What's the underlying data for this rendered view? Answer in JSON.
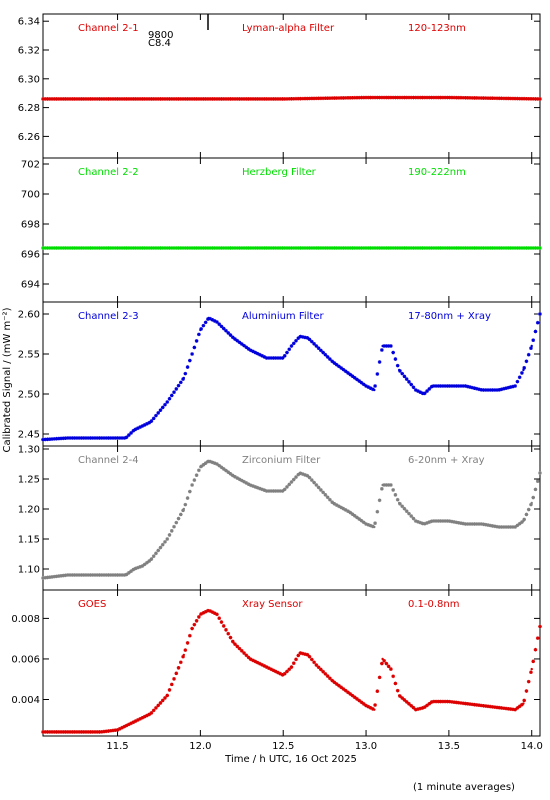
{
  "xlabel": "Time / h UTC, 16 Oct 2025",
  "ylabel": "Calibrated Signal / (mW m⁻²)",
  "footnote": "(1 minute averages)",
  "stray_labels": [
    "9800",
    "C8.4"
  ],
  "chart_data": [
    {
      "type": "scatter",
      "labels": [
        "Channel 2-1",
        "Lyman-alpha Filter",
        "120-123nm"
      ],
      "color": "#dd0000",
      "xlim": [
        11.05,
        14.05
      ],
      "ylim": [
        6.245,
        6.345
      ],
      "yticks": [
        "6.26",
        "6.28",
        "6.30",
        "6.32",
        "6.34"
      ],
      "ytick_values": [
        6.26,
        6.28,
        6.3,
        6.32,
        6.34
      ],
      "x": [
        11.05,
        11.5,
        12.0,
        12.5,
        13.0,
        13.5,
        14.05
      ],
      "y": [
        6.286,
        6.286,
        6.286,
        6.286,
        6.287,
        6.287,
        6.286
      ]
    },
    {
      "type": "scatter",
      "labels": [
        "Channel 2-2",
        "Herzberg Filter",
        "190-222nm"
      ],
      "color": "#00dd00",
      "xlim": [
        11.05,
        14.05
      ],
      "ylim": [
        692.8,
        702.4
      ],
      "yticks": [
        "694",
        "696",
        "698",
        "700",
        "702"
      ],
      "ytick_values": [
        694,
        696,
        698,
        700,
        702
      ],
      "x": [
        11.05,
        11.5,
        12.0,
        12.5,
        13.0,
        13.5,
        14.05
      ],
      "y": [
        696.4,
        696.4,
        696.4,
        696.4,
        696.4,
        696.4,
        696.4
      ]
    },
    {
      "type": "scatter",
      "labels": [
        "Channel 2-3",
        "Aluminium Filter",
        "17-80nm + Xray"
      ],
      "color": "#0000dd",
      "xlim": [
        11.05,
        14.05
      ],
      "ylim": [
        2.435,
        2.615
      ],
      "yticks": [
        "2.45",
        "2.50",
        "2.55",
        "2.60"
      ],
      "ytick_values": [
        2.45,
        2.5,
        2.55,
        2.6
      ],
      "x": [
        11.05,
        11.2,
        11.3,
        11.4,
        11.55,
        11.6,
        11.65,
        11.7,
        11.8,
        11.9,
        11.95,
        12.0,
        12.05,
        12.1,
        12.2,
        12.3,
        12.4,
        12.5,
        12.55,
        12.6,
        12.65,
        12.7,
        12.8,
        12.9,
        13.0,
        13.05,
        13.1,
        13.15,
        13.2,
        13.3,
        13.35,
        13.4,
        13.5,
        13.6,
        13.7,
        13.8,
        13.9,
        13.95,
        14.0,
        14.05
      ],
      "y": [
        2.443,
        2.445,
        2.445,
        2.445,
        2.445,
        2.455,
        2.46,
        2.465,
        2.49,
        2.52,
        2.55,
        2.58,
        2.595,
        2.59,
        2.57,
        2.555,
        2.545,
        2.545,
        2.56,
        2.572,
        2.57,
        2.56,
        2.54,
        2.525,
        2.51,
        2.505,
        2.56,
        2.56,
        2.53,
        2.505,
        2.5,
        2.51,
        2.51,
        2.51,
        2.505,
        2.505,
        2.51,
        2.53,
        2.56,
        2.6
      ]
    },
    {
      "type": "scatter",
      "labels": [
        "Channel 2-4",
        "Zirconium Filter",
        "6-20nm + Xray"
      ],
      "color": "#808080",
      "xlim": [
        11.05,
        14.05
      ],
      "ylim": [
        1.065,
        1.305
      ],
      "yticks": [
        "1.10",
        "1.15",
        "1.20",
        "1.25",
        "1.30"
      ],
      "ytick_values": [
        1.1,
        1.15,
        1.2,
        1.25,
        1.3
      ],
      "x": [
        11.05,
        11.2,
        11.3,
        11.4,
        11.55,
        11.6,
        11.65,
        11.7,
        11.8,
        11.9,
        11.95,
        12.0,
        12.05,
        12.1,
        12.2,
        12.3,
        12.4,
        12.5,
        12.55,
        12.6,
        12.65,
        12.7,
        12.8,
        12.9,
        13.0,
        13.05,
        13.1,
        13.15,
        13.2,
        13.3,
        13.35,
        13.4,
        13.5,
        13.6,
        13.7,
        13.8,
        13.9,
        13.95,
        14.0,
        14.05
      ],
      "y": [
        1.085,
        1.09,
        1.09,
        1.09,
        1.09,
        1.1,
        1.105,
        1.115,
        1.15,
        1.2,
        1.24,
        1.27,
        1.28,
        1.275,
        1.255,
        1.24,
        1.23,
        1.23,
        1.245,
        1.26,
        1.255,
        1.24,
        1.21,
        1.195,
        1.175,
        1.17,
        1.24,
        1.24,
        1.21,
        1.18,
        1.175,
        1.18,
        1.18,
        1.175,
        1.175,
        1.17,
        1.17,
        1.18,
        1.21,
        1.26
      ]
    },
    {
      "type": "scatter",
      "labels": [
        "GOES",
        "Xray Sensor",
        "0.1-0.8nm"
      ],
      "color": "#dd0000",
      "xlim": [
        11.05,
        14.05
      ],
      "ylim": [
        0.0022,
        0.0094
      ],
      "yticks": [
        "0.004",
        "0.006",
        "0.008"
      ],
      "ytick_values": [
        0.004,
        0.006,
        0.008
      ],
      "x": [
        11.05,
        11.2,
        11.3,
        11.4,
        11.5,
        11.6,
        11.65,
        11.7,
        11.8,
        11.9,
        11.95,
        12.0,
        12.05,
        12.1,
        12.2,
        12.3,
        12.4,
        12.5,
        12.55,
        12.6,
        12.65,
        12.7,
        12.8,
        12.9,
        13.0,
        13.05,
        13.1,
        13.15,
        13.2,
        13.3,
        13.35,
        13.4,
        13.5,
        13.6,
        13.7,
        13.8,
        13.9,
        13.95,
        14.0,
        14.05
      ],
      "y": [
        0.0024,
        0.0024,
        0.0024,
        0.0024,
        0.0025,
        0.0029,
        0.0031,
        0.0033,
        0.0042,
        0.0062,
        0.0075,
        0.0082,
        0.0084,
        0.0082,
        0.0068,
        0.006,
        0.0056,
        0.0052,
        0.0056,
        0.0063,
        0.0062,
        0.0057,
        0.0049,
        0.0043,
        0.0037,
        0.0035,
        0.006,
        0.0055,
        0.0042,
        0.0035,
        0.0036,
        0.0039,
        0.0039,
        0.0038,
        0.0037,
        0.0036,
        0.0035,
        0.0038,
        0.0055,
        0.0076
      ]
    }
  ],
  "x_axis": {
    "tick_labels": [
      "11.5",
      "12.0",
      "12.5",
      "13.0",
      "13.5",
      "14.0"
    ],
    "tick_values": [
      11.5,
      12.0,
      12.5,
      13.0,
      13.5,
      14.0
    ]
  }
}
